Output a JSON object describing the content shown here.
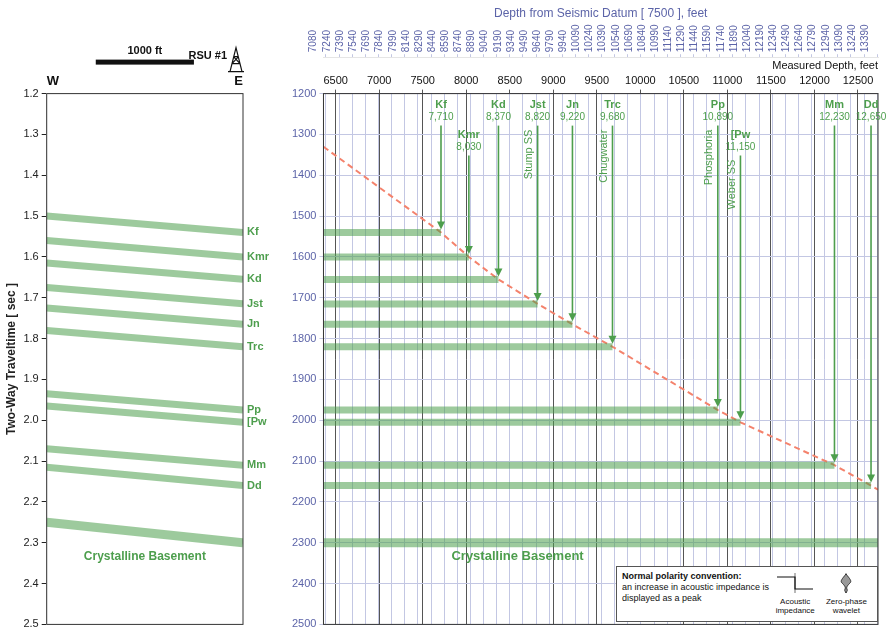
{
  "chart_data": [
    {
      "type": "line",
      "direction_labels": [
        "W",
        "E"
      ],
      "scale_bar": {
        "value": 1000,
        "label": "1000 ft"
      },
      "well": "RSU #1",
      "x": [
        0,
        2000
      ],
      "xlim": [
        0,
        2000
      ],
      "ylim": [
        2.5,
        1.2
      ],
      "yticks": [
        1.2,
        1.3,
        1.4,
        1.5,
        1.6,
        1.7,
        1.8,
        1.9,
        {
          "value": 2,
          "label": "2.0"
        },
        2.1,
        2.2,
        2.3,
        2.4,
        2.5
      ],
      "ylabel": "Two-Way Traveltime [ sec ]",
      "grid": false,
      "tick_labels": "y",
      "color": "#4d9e4d",
      "series": [
        {
          "name": "Kf",
          "values": [
            1.5,
            1.54
          ]
        },
        {
          "name": "Kmr",
          "values": [
            1.56,
            1.6
          ]
        },
        {
          "name": "Kd",
          "values": [
            1.615,
            1.655
          ]
        },
        {
          "name": "Jst",
          "values": [
            1.675,
            1.715
          ]
        },
        {
          "name": "Jn",
          "values": [
            1.725,
            1.765
          ]
        },
        {
          "name": "Trc",
          "values": [
            1.78,
            1.82
          ]
        },
        {
          "name": "Pp",
          "values": [
            1.935,
            1.975
          ]
        },
        {
          "name": "[Pw",
          "values": [
            1.965,
            2.005
          ]
        },
        {
          "name": "Mm",
          "values": [
            2.07,
            2.11
          ]
        },
        {
          "name": "Dd",
          "values": [
            2.115,
            2.16
          ]
        }
      ],
      "basement": {
        "name": "Crystalline Basement",
        "values": [
          2.25,
          2.3
        ]
      }
    },
    {
      "type": "line",
      "x2label": "Depth from Seismic Datum [ 7500 ], feet",
      "xlabel": "Measured Depth, feet",
      "xlim": [
        6360,
        12730
      ],
      "xticks": [
        6500,
        7000,
        7500,
        8000,
        8500,
        9000,
        9500,
        10000,
        10500,
        11000,
        11500,
        12000,
        12500
      ],
      "x2lim": [
        7060,
        13400
      ],
      "x2ticks": [
        7080,
        7240,
        7390,
        7540,
        7690,
        7840,
        7990,
        8140,
        8290,
        8440,
        8590,
        8740,
        8890,
        9040,
        9190,
        9340,
        9490,
        9640,
        9790,
        9940,
        10090,
        10240,
        10390,
        10540,
        10690,
        10840,
        10990,
        11140,
        11290,
        11440,
        11590,
        11740,
        11890,
        12040,
        12190,
        12340,
        12490,
        12640,
        12790,
        12940,
        13090,
        13240,
        13390
      ],
      "ylim": [
        2500,
        1200
      ],
      "yticks": [
        1200,
        1300,
        1400,
        1500,
        1600,
        1700,
        1800,
        1900,
        2000,
        2100,
        2200,
        2300,
        2400,
        2500
      ],
      "grid": true,
      "color": "#4d9e4d",
      "well_track": {
        "color": "#f4826c",
        "line_style": "dashed",
        "x": [
          6360,
          7710,
          8030,
          8370,
          8820,
          9220,
          9680,
          10890,
          11150,
          12230,
          12650,
          12730
        ],
        "y": [
          1330,
          1540,
          1600,
          1655,
          1715,
          1765,
          1820,
          1975,
          2005,
          2110,
          2160,
          2170
        ]
      },
      "horizons": [
        {
          "name": "Kf",
          "depth": 7710,
          "depth_label": "7,710",
          "time": 1540
        },
        {
          "name": "Kmr",
          "depth": 8030,
          "depth_label": "8,030",
          "time": 1600
        },
        {
          "name": "Kd",
          "depth": 8370,
          "depth_label": "8,370",
          "time": 1655
        },
        {
          "name": "Jst",
          "depth": 8820,
          "depth_label": "8,820",
          "time": 1715,
          "formation": "Stump SS"
        },
        {
          "name": "Jn",
          "depth": 9220,
          "depth_label": "9,220",
          "time": 1765
        },
        {
          "name": "Trc",
          "depth": 9680,
          "depth_label": "9,680",
          "time": 1820,
          "formation": "Chugwater"
        },
        {
          "name": "Pp",
          "depth": 10890,
          "depth_label": "10,890",
          "time": 1975,
          "formation": "Phosphoria"
        },
        {
          "name": "[Pw",
          "depth": 11150,
          "depth_label": "11,150",
          "time": 2005,
          "formation": "Weber SS"
        },
        {
          "name": "Mm",
          "depth": 12230,
          "depth_label": "12,230",
          "time": 2110
        },
        {
          "name": "Dd",
          "depth": 12650,
          "depth_label": "12,650",
          "time": 2160
        }
      ],
      "basement": {
        "name": "Crystalline Basement",
        "time": 2300
      },
      "polarity_note": {
        "title": "Normal polarity convention:",
        "text": "an increase in acoustic impedance is displayed as a peak",
        "labels": [
          "Acoustic impedance",
          "Zero-phase wavelet"
        ]
      }
    }
  ]
}
